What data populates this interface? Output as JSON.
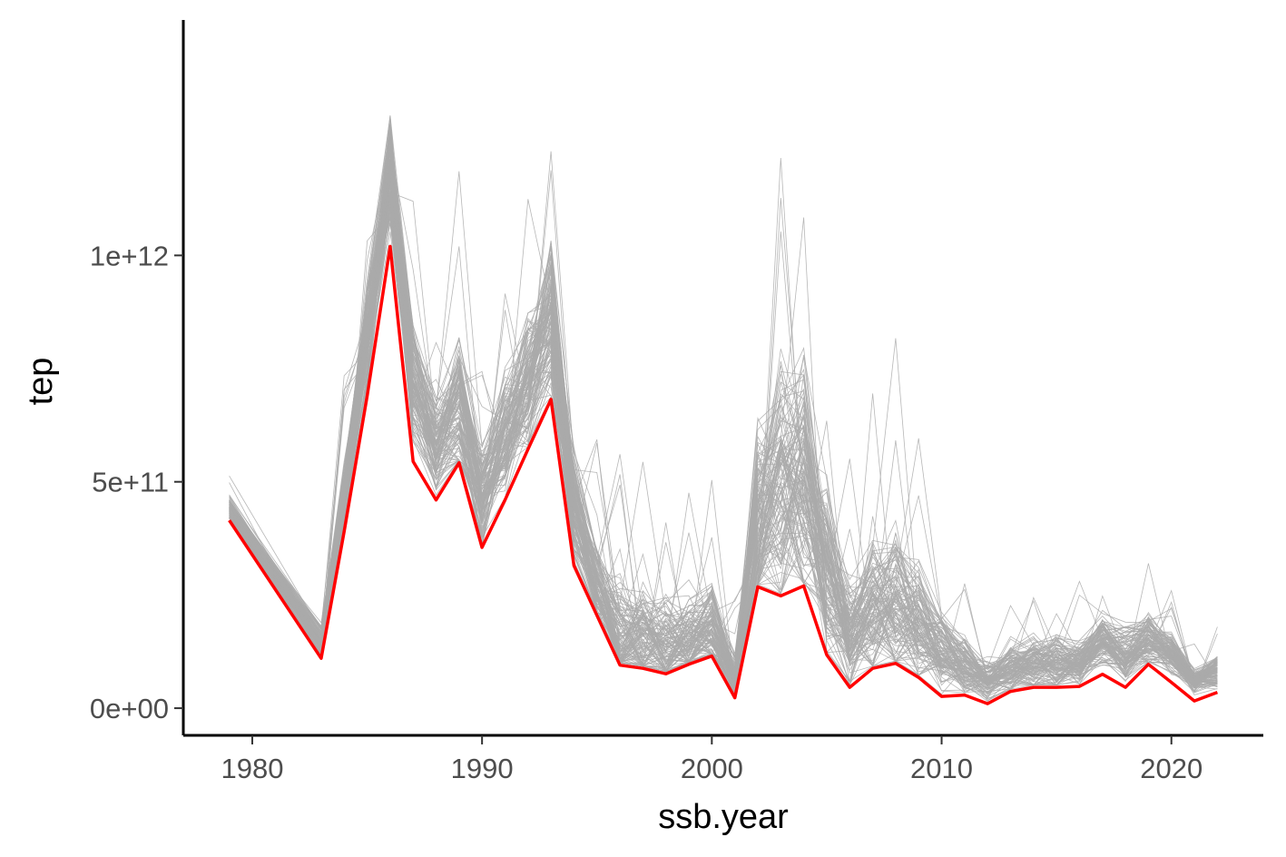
{
  "chart_data": {
    "type": "line",
    "xlabel": "ssb.year",
    "ylabel": "tep",
    "xlim": [
      1977,
      2024
    ],
    "ylim": [
      -60000000000.0,
      1520000000000.0
    ],
    "x_ticks": [
      1980,
      1990,
      2000,
      2010,
      2020
    ],
    "x_tick_labels": [
      "1980",
      "1990",
      "2000",
      "2010",
      "2020"
    ],
    "y_ticks": [
      0,
      500000000000.0,
      1000000000000.0
    ],
    "y_tick_labels": [
      "0e+00",
      "5e+11",
      "1e+12"
    ],
    "grid": false,
    "legend": "none",
    "colors": {
      "highlight": "#ff0000",
      "ensemble": "#aaaaaa",
      "axis": "#000000"
    },
    "highlight_series": {
      "x": [
        1979,
        1983,
        1984,
        1985,
        1986,
        1987,
        1988,
        1989,
        1990,
        1991,
        1992,
        1993,
        1994,
        1995,
        1996,
        1997,
        1998,
        1999,
        2000,
        2001,
        2002,
        2003,
        2004,
        2005,
        2006,
        2007,
        2008,
        2009,
        2010,
        2011,
        2012,
        2013,
        2014,
        2015,
        2016,
        2017,
        2018,
        2019,
        2020,
        2021,
        2022
      ],
      "y": [
        415000000000.0,
        110000000000.0,
        390000000000.0,
        690000000000.0,
        1020000000000.0,
        545000000000.0,
        460000000000.0,
        542000000000.0,
        355000000000.0,
        460000000000.0,
        572000000000.0,
        682000000000.0,
        315000000000.0,
        205000000000.0,
        95000000000.0,
        88000000000.0,
        76000000000.0,
        97000000000.0,
        115000000000.0,
        23000000000.0,
        268000000000.0,
        248000000000.0,
        270000000000.0,
        118000000000.0,
        46000000000.0,
        88000000000.0,
        99000000000.0,
        68000000000.0,
        26000000000.0,
        29000000000.0,
        10000000000.0,
        37000000000.0,
        46000000000.0,
        46000000000.0,
        48000000000.0,
        75000000000.0,
        46000000000.0,
        97000000000.0,
        57000000000.0,
        16000000000.0,
        35000000000.0
      ]
    },
    "ensemble": {
      "count": 120,
      "mean_y": [
        440000000000.0,
        145000000000.0,
        460000000000.0,
        830000000000.0,
        1180000000000.0,
        720000000000.0,
        580000000000.0,
        660000000000.0,
        460000000000.0,
        590000000000.0,
        720000000000.0,
        860000000000.0,
        440000000000.0,
        260000000000.0,
        155000000000.0,
        145000000000.0,
        140000000000.0,
        150000000000.0,
        175000000000.0,
        60000000000.0,
        400000000000.0,
        480000000000.0,
        490000000000.0,
        290000000000.0,
        160000000000.0,
        220000000000.0,
        230000000000.0,
        180000000000.0,
        120000000000.0,
        90000000000.0,
        60000000000.0,
        85000000000.0,
        100000000000.0,
        100000000000.0,
        100000000000.0,
        150000000000.0,
        120000000000.0,
        150000000000.0,
        120000000000.0,
        60000000000.0,
        80000000000.0
      ],
      "spread_y": [
        25000000000.0,
        35000000000.0,
        80000000000.0,
        110000000000.0,
        120000000000.0,
        110000000000.0,
        100000000000.0,
        140000000000.0,
        110000000000.0,
        130000000000.0,
        150000000000.0,
        160000000000.0,
        110000000000.0,
        90000000000.0,
        130000000000.0,
        100000000000.0,
        100000000000.0,
        90000000000.0,
        90000000000.0,
        60000000000.0,
        220000000000.0,
        260000000000.0,
        270000000000.0,
        200000000000.0,
        120000000000.0,
        150000000000.0,
        160000000000.0,
        130000000000.0,
        80000000000.0,
        65000000000.0,
        40000000000.0,
        45000000000.0,
        60000000000.0,
        60000000000.0,
        45000000000.0,
        55000000000.0,
        55000000000.0,
        55000000000.0,
        40000000000.0,
        25000000000.0,
        30000000000.0
      ]
    }
  }
}
